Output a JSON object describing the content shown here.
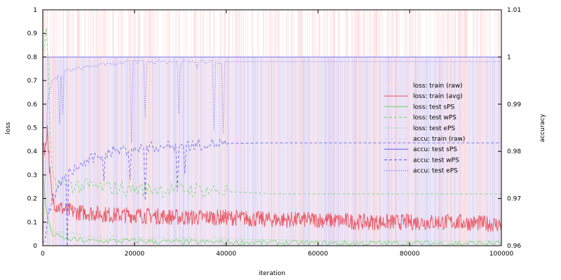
{
  "chart_data": {
    "type": "line",
    "xlabel": "iteration",
    "ylabel": "loss",
    "y2label": "accuracy",
    "xlim": [
      0,
      100000
    ],
    "ylim": [
      0,
      1
    ],
    "y2lim": [
      0.96,
      1.01
    ],
    "xticks": [
      0,
      20000,
      40000,
      60000,
      80000,
      100000
    ],
    "yticks": [
      0,
      0.1,
      0.2,
      0.3,
      0.4,
      0.5,
      0.6,
      0.7,
      0.8,
      0.9,
      1
    ],
    "y2ticks": [
      0.96,
      0.97,
      0.98,
      0.99,
      1,
      1.01
    ],
    "xtick_labels": [
      "0",
      "20000",
      "40000",
      "60000",
      "80000",
      "100000"
    ],
    "ytick_labels": [
      "0",
      "0.1",
      "0.2",
      "0.3",
      "0.4",
      "0.5",
      "0.6",
      "0.7",
      "0.8",
      "0.9",
      "1"
    ],
    "y2tick_labels": [
      "0.96",
      "0.97",
      "0.98",
      "0.99",
      "1",
      "1.01"
    ],
    "grid": false,
    "legend_position": "right",
    "legend": [
      {
        "name": "loss: train (raw)",
        "color": "#ffdede",
        "dash": "solid"
      },
      {
        "name": "loss: train (avg)",
        "color": "#e8606c",
        "dash": "solid"
      },
      {
        "name": "loss: test sPS",
        "color": "#7fd87f",
        "dash": "solid"
      },
      {
        "name": "loss: test wPS",
        "color": "#7fd87f",
        "dash": "dashed"
      },
      {
        "name": "loss: test ePS",
        "color": "#7fd87f",
        "dash": "dotted"
      },
      {
        "name": "accu: train (raw)",
        "color": "#dcd6f7",
        "dash": "solid"
      },
      {
        "name": "accu: test sPS",
        "color": "#6a6aee",
        "dash": "solid"
      },
      {
        "name": "accu: test wPS",
        "color": "#6a6aee",
        "dash": "dashed"
      },
      {
        "name": "accu: test ePS",
        "color": "#6a6aee",
        "dash": "dotted"
      }
    ],
    "series": [
      {
        "name": "loss: train (avg)",
        "axis": "y",
        "x": [
          0,
          500,
          1000,
          1500,
          2000,
          3000,
          5000,
          8000,
          10000,
          15000,
          20000,
          30000,
          40000,
          50000,
          60000,
          70000,
          80000,
          90000,
          100000
        ],
        "y": [
          0.45,
          0.4,
          0.5,
          0.32,
          0.2,
          0.17,
          0.15,
          0.14,
          0.14,
          0.13,
          0.13,
          0.12,
          0.12,
          0.11,
          0.11,
          0.1,
          0.1,
          0.1,
          0.09
        ]
      },
      {
        "name": "loss: test sPS",
        "axis": "y",
        "x": [
          0,
          1000,
          2000,
          3000,
          5000,
          10000,
          20000,
          30000,
          40000,
          60000,
          80000,
          100000
        ],
        "y": [
          0.3,
          0.12,
          0.05,
          0.04,
          0.03,
          0.02,
          0.02,
          0.015,
          0.015,
          0.01,
          0.01,
          0.01
        ]
      },
      {
        "name": "loss: test wPS",
        "axis": "y",
        "x": [
          0,
          1000,
          1500,
          2000,
          3000,
          5000,
          10000,
          20000,
          30000,
          40000,
          50000,
          60000,
          80000,
          100000
        ],
        "y": [
          0.8,
          0.92,
          0.5,
          0.3,
          0.27,
          0.26,
          0.25,
          0.24,
          0.24,
          0.23,
          0.22,
          0.22,
          0.22,
          0.22
        ]
      },
      {
        "name": "loss: test ePS",
        "axis": "y",
        "x": [
          0,
          1000,
          2000,
          5000,
          10000,
          20000,
          40000,
          60000,
          80000,
          100000
        ],
        "y": [
          0.25,
          0.1,
          0.06,
          0.05,
          0.04,
          0.03,
          0.03,
          0.02,
          0.02,
          0.02
        ]
      },
      {
        "name": "accu: test sPS",
        "axis": "y2",
        "x": [
          0,
          100000
        ],
        "y": [
          1.0,
          1.0
        ]
      },
      {
        "name": "accu: test wPS",
        "axis": "y2",
        "x": [
          0,
          1000,
          2000,
          5000,
          10000,
          15000,
          20000,
          25000,
          30000,
          35000,
          40000,
          50000,
          60000,
          80000,
          100000
        ],
        "y": [
          0.96,
          0.965,
          0.97,
          0.975,
          0.978,
          0.98,
          0.9805,
          0.981,
          0.9812,
          0.9815,
          0.9817,
          0.9818,
          0.9818,
          0.9818,
          0.9818
        ]
      },
      {
        "name": "accu: test ePS",
        "axis": "y2",
        "x": [
          0,
          1000,
          2000,
          5000,
          10000,
          15000,
          20000,
          30000,
          40000,
          50000,
          60000,
          80000,
          100000
        ],
        "y": [
          0.96,
          0.99,
          0.995,
          0.997,
          0.998,
          0.9985,
          0.999,
          0.999,
          0.999,
          0.999,
          0.999,
          0.999,
          0.999
        ]
      }
    ]
  }
}
